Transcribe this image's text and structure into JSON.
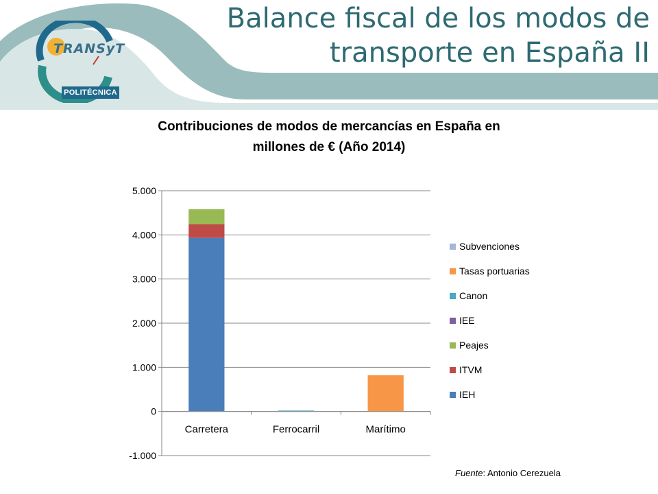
{
  "header": {
    "title_line1": "Balance fiscal de los modos de",
    "title_line2": "transporte en España II"
  },
  "logo": {
    "word": "TRANSyT",
    "badge": "POLITÉCNICA"
  },
  "colors": {
    "header_teal": "#9bbcbc",
    "title_text": "#2e6a72"
  },
  "chart_title": {
    "line1": "Contribuciones de modos de mercancías en España  en",
    "line2": "millones de € (Año 2014)"
  },
  "source": {
    "label": "Fuente",
    "text": ": Antonio Cerezuela"
  },
  "chart_data": {
    "type": "bar",
    "stacked": true,
    "categories": [
      "Carretera",
      "Ferrocarril",
      "Marítimo"
    ],
    "ylim": [
      -1000,
      5000
    ],
    "yticks": [
      -1000,
      0,
      1000,
      2000,
      3000,
      4000,
      5000
    ],
    "ytick_labels": [
      "-1.000",
      "0",
      "1.000",
      "2.000",
      "3.000",
      "4.000",
      "5.000"
    ],
    "grid": true,
    "legend_position": "right",
    "series": [
      {
        "name": "IEH",
        "color": "#4a7ebb",
        "values": [
          3930,
          0,
          0
        ]
      },
      {
        "name": "ITVM",
        "color": "#be4b48",
        "values": [
          310,
          0,
          0
        ]
      },
      {
        "name": "Peajes",
        "color": "#98b954",
        "values": [
          340,
          0,
          0
        ]
      },
      {
        "name": "IEE",
        "color": "#7d60a0",
        "values": [
          0,
          0,
          0
        ]
      },
      {
        "name": "Canon",
        "color": "#46aac5",
        "values": [
          0,
          20,
          0
        ]
      },
      {
        "name": "Tasas portuarias",
        "color": "#f79646",
        "values": [
          0,
          0,
          820
        ]
      },
      {
        "name": "Subvenciones",
        "color": "#a5b6db",
        "values": [
          0,
          0,
          0
        ]
      }
    ],
    "legend_order": [
      "Subvenciones",
      "Tasas portuarias",
      "Canon",
      "IEE",
      "Peajes",
      "ITVM",
      "IEH"
    ]
  }
}
